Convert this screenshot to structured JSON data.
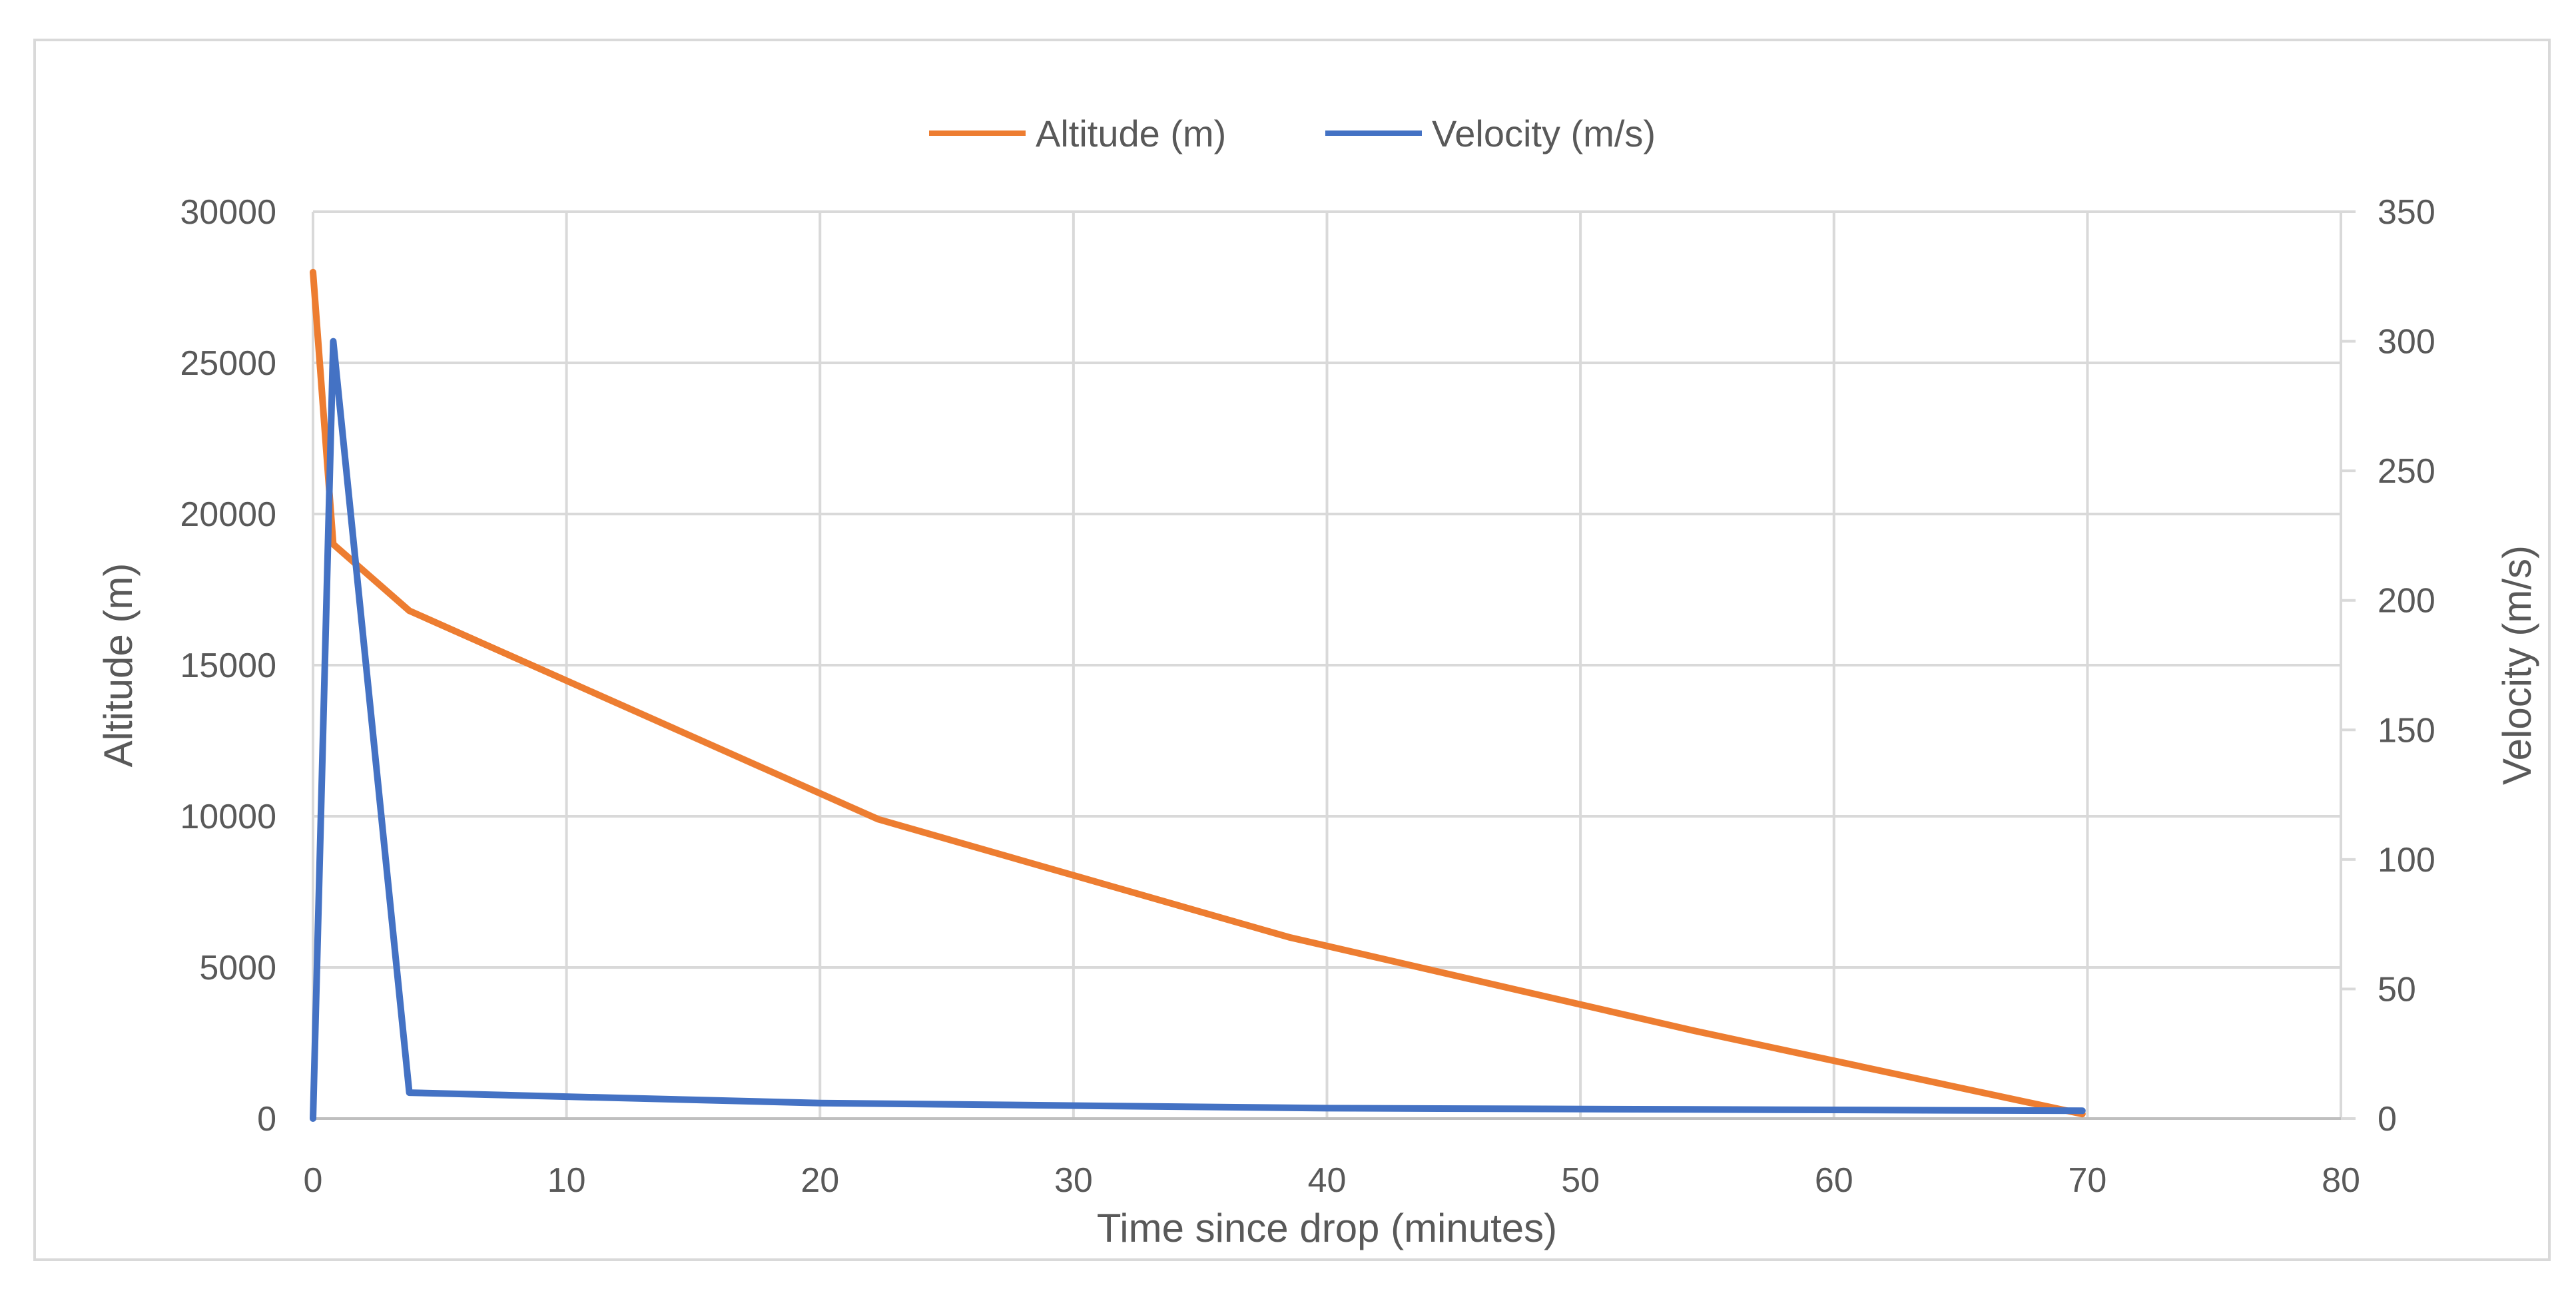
{
  "chart_data": {
    "type": "line",
    "title": "",
    "xlabel": "Time since drop (minutes)",
    "ylabel": "Altitude (m)",
    "y2label": "Velocity (m/s)",
    "xlim": [
      0,
      80
    ],
    "ylim": [
      0,
      30000
    ],
    "y2lim": [
      0,
      350
    ],
    "xticks": [
      "0",
      "10",
      "20",
      "30",
      "40",
      "50",
      "60",
      "70",
      "80"
    ],
    "yticks": [
      "0",
      "5000",
      "10000",
      "15000",
      "20000",
      "25000",
      "30000"
    ],
    "y2ticks": [
      "0",
      "50",
      "100",
      "150",
      "200",
      "250",
      "300",
      "350"
    ],
    "grid": true,
    "legend_position": "top",
    "series": [
      {
        "name": "Altitude (m)",
        "axis": "left",
        "color": "#ed7d31",
        "points": [
          {
            "x": 0,
            "y": 28000
          },
          {
            "x": 0.8,
            "y": 19000
          },
          {
            "x": 3.8,
            "y": 16800
          },
          {
            "x": 22.3,
            "y": 9900
          },
          {
            "x": 38.5,
            "y": 6000
          },
          {
            "x": 54.5,
            "y": 2900
          },
          {
            "x": 69.8,
            "y": 150
          }
        ]
      },
      {
        "name": "Velocity (m/s)",
        "axis": "right",
        "color": "#4472c4",
        "points": [
          {
            "x": 0,
            "y": 0
          },
          {
            "x": 0.8,
            "y": 300
          },
          {
            "x": 3.8,
            "y": 10
          },
          {
            "x": 20,
            "y": 6
          },
          {
            "x": 40,
            "y": 4
          },
          {
            "x": 69.8,
            "y": 3
          }
        ]
      }
    ]
  }
}
